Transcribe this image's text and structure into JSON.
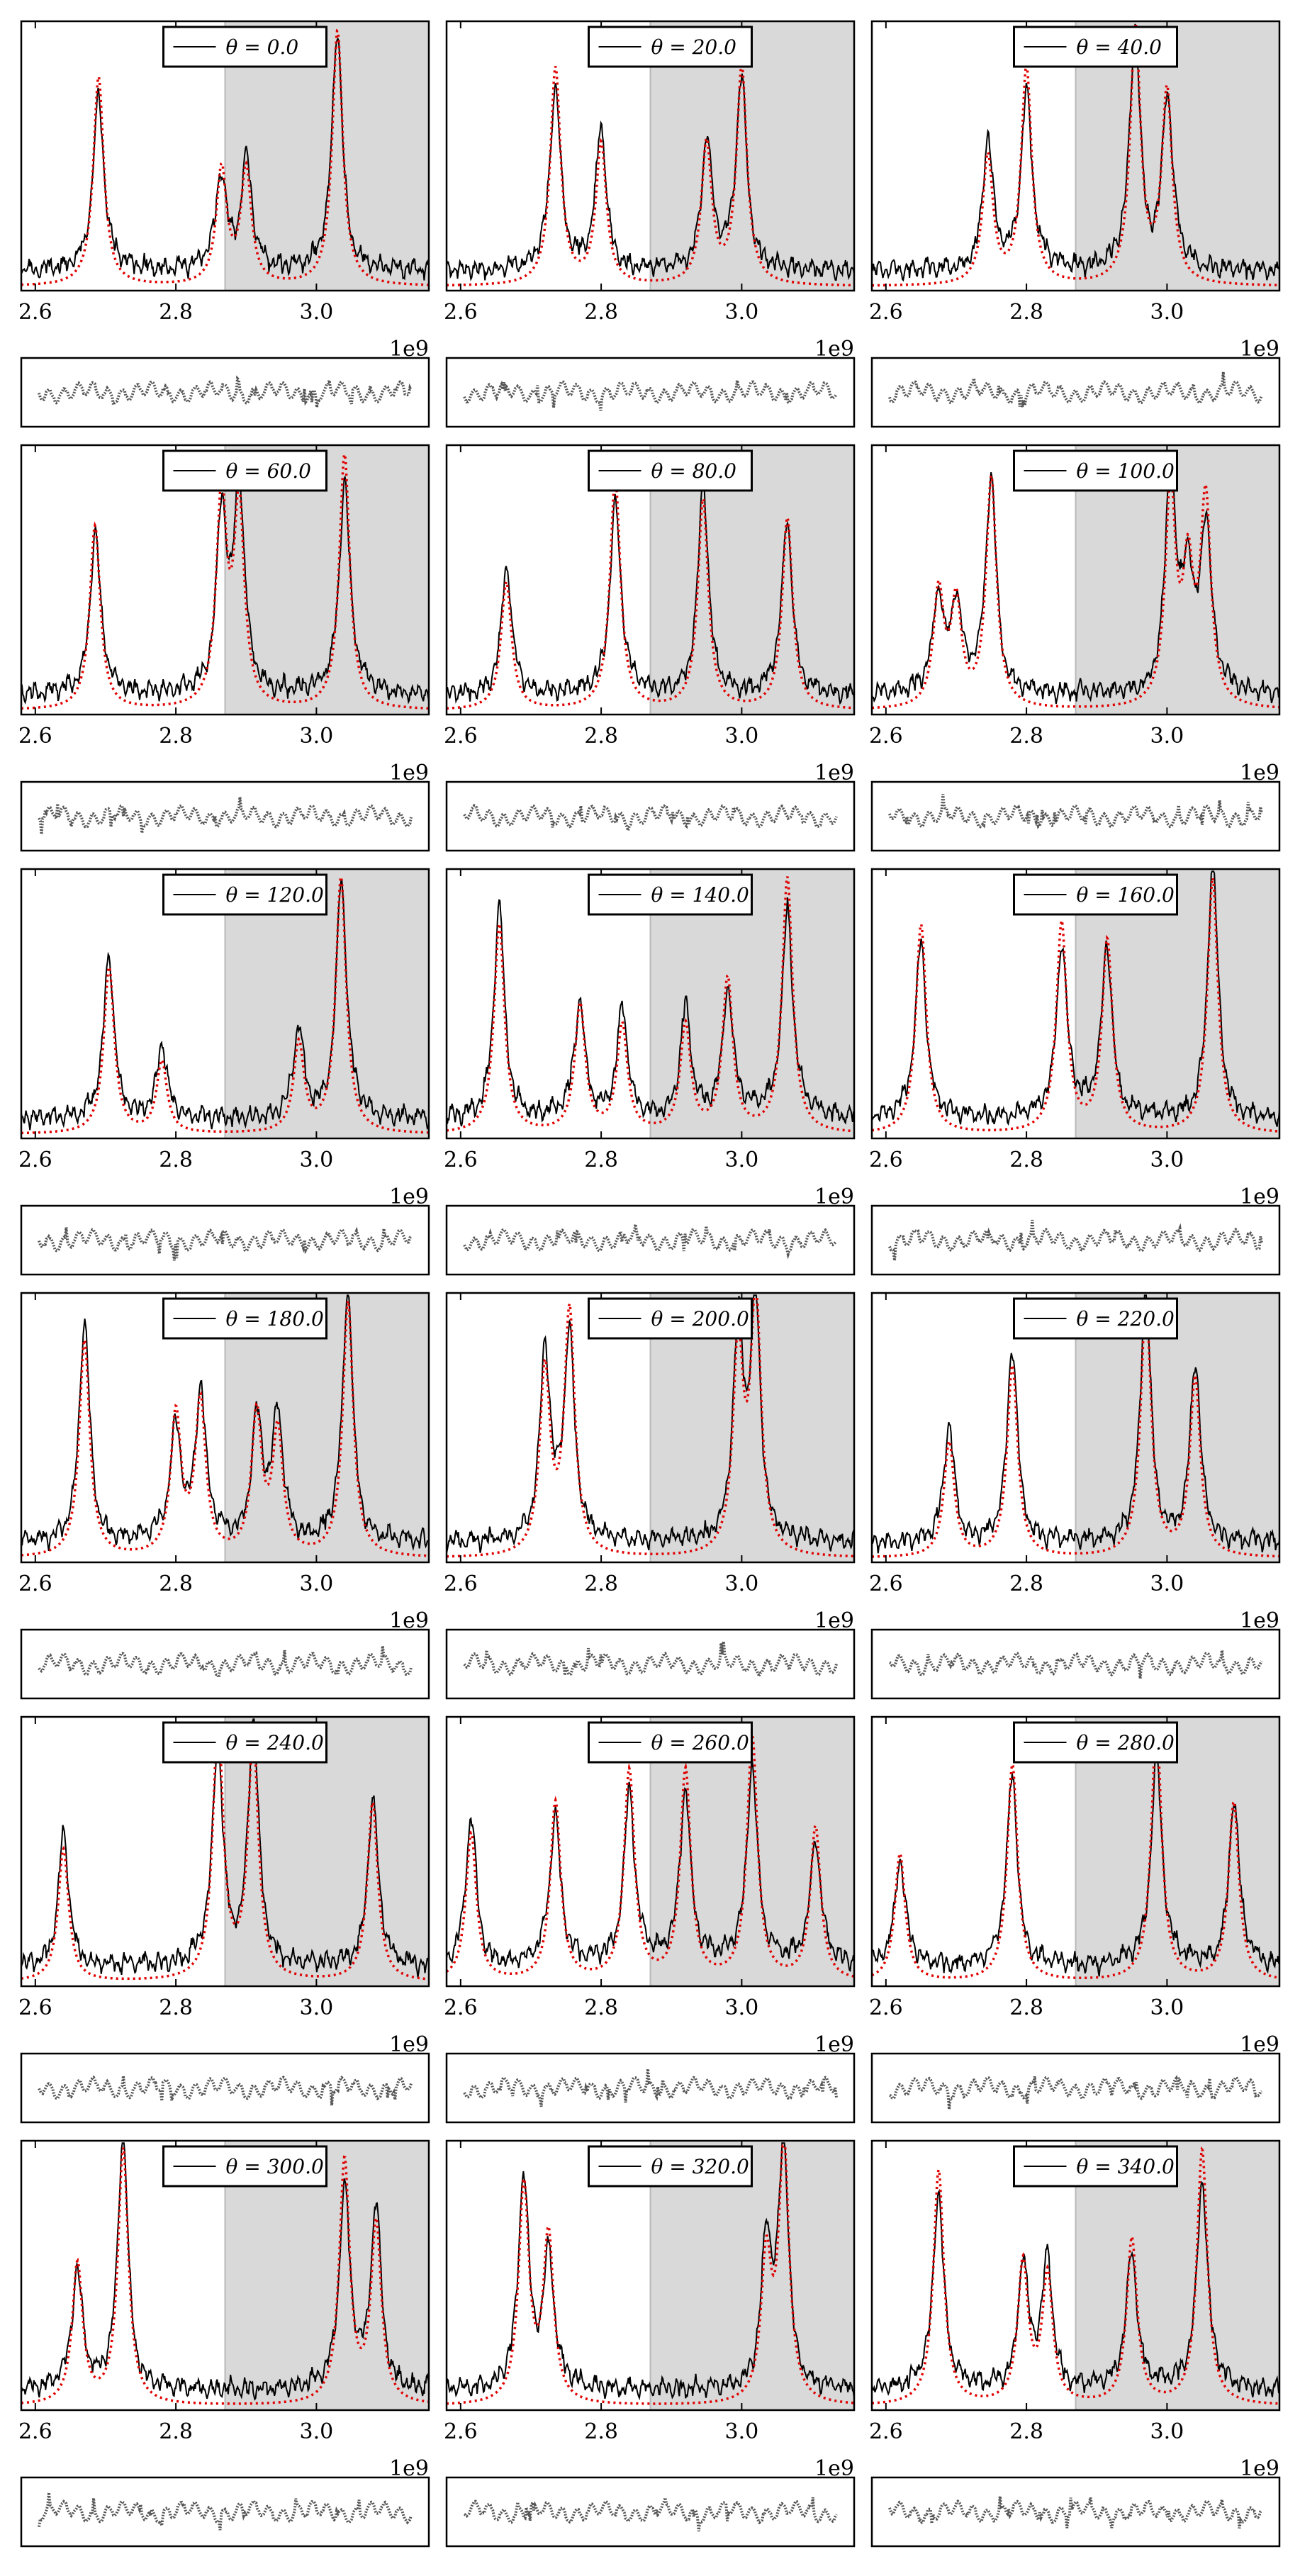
{
  "figure": {
    "grid": {
      "rows": 6,
      "cols": 3
    },
    "x_offset_label": "1e9",
    "shaded_region_start": 2870000000,
    "colors": {
      "data_line": "#000000",
      "fit_line": "#e00000",
      "shade": "#d9d9d9",
      "residual": "#555555"
    }
  },
  "chart_data": [
    {
      "type": "line",
      "legend": "θ = 0.0",
      "xlim": [
        2580000000,
        3160000000
      ],
      "xticks": [
        "2.6",
        "2.8",
        "3.0"
      ],
      "xtick_values": [
        2600000000,
        2800000000,
        3000000000
      ],
      "peaks": [
        [
          2690000000,
          0.82
        ],
        [
          2865000000,
          0.45
        ],
        [
          2900000000,
          0.45
        ],
        [
          3030000000,
          1.0
        ]
      ]
    },
    {
      "type": "line",
      "legend": "θ = 20.0",
      "xlim": [
        2580000000,
        3160000000
      ],
      "xticks": [
        "2.6",
        "2.8",
        "3.0"
      ],
      "xtick_values": [
        2600000000,
        2800000000,
        3000000000
      ],
      "peaks": [
        [
          2735000000,
          0.85
        ],
        [
          2800000000,
          0.55
        ],
        [
          2950000000,
          0.55
        ],
        [
          3000000000,
          0.85
        ]
      ]
    },
    {
      "type": "line",
      "legend": "θ = 40.0",
      "xlim": [
        2580000000,
        3160000000
      ],
      "xticks": [
        "2.6",
        "2.8",
        "3.0"
      ],
      "xtick_values": [
        2600000000,
        2800000000,
        3000000000
      ],
      "peaks": [
        [
          2745000000,
          0.5
        ],
        [
          2800000000,
          0.85
        ],
        [
          2955000000,
          1.0
        ],
        [
          3000000000,
          0.75
        ]
      ]
    },
    {
      "type": "line",
      "legend": "θ = 60.0",
      "xlim": [
        2580000000,
        3160000000
      ],
      "xticks": [
        "2.6",
        "2.8",
        "3.0"
      ],
      "xtick_values": [
        2600000000,
        2800000000,
        3000000000
      ],
      "peaks": [
        [
          2685000000,
          0.72
        ],
        [
          2865000000,
          0.82
        ],
        [
          2890000000,
          0.78
        ],
        [
          3040000000,
          1.0
        ]
      ]
    },
    {
      "type": "line",
      "legend": "θ = 80.0",
      "xlim": [
        2580000000,
        3160000000
      ],
      "xticks": [
        "2.6",
        "2.8",
        "3.0"
      ],
      "xtick_values": [
        2600000000,
        2800000000,
        3000000000
      ],
      "peaks": [
        [
          2665000000,
          0.5
        ],
        [
          2820000000,
          0.9
        ],
        [
          2945000000,
          0.82
        ],
        [
          3065000000,
          0.75
        ]
      ]
    },
    {
      "type": "line",
      "legend": "θ = 100.0",
      "xlim": [
        2580000000,
        3160000000
      ],
      "xticks": [
        "2.6",
        "2.8",
        "3.0"
      ],
      "xtick_values": [
        2600000000,
        2800000000,
        3000000000
      ],
      "peaks": [
        [
          2675000000,
          0.45
        ],
        [
          2700000000,
          0.4
        ],
        [
          2750000000,
          0.9
        ],
        [
          3005000000,
          0.85
        ],
        [
          3030000000,
          0.5
        ],
        [
          3055000000,
          0.8
        ]
      ]
    },
    {
      "type": "line",
      "legend": "θ = 120.0",
      "xlim": [
        2580000000,
        3160000000
      ],
      "xticks": [
        "2.6",
        "2.8",
        "3.0"
      ],
      "xtick_values": [
        2600000000,
        2800000000,
        3000000000
      ],
      "peaks": [
        [
          2705000000,
          0.65
        ],
        [
          2780000000,
          0.28
        ],
        [
          2975000000,
          0.35
        ],
        [
          3035000000,
          1.0
        ]
      ]
    },
    {
      "type": "line",
      "legend": "θ = 140.0",
      "xlim": [
        2580000000,
        3160000000
      ],
      "xticks": [
        "2.6",
        "2.8",
        "3.0"
      ],
      "xtick_values": [
        2600000000,
        2800000000,
        3000000000
      ],
      "peaks": [
        [
          2655000000,
          0.82
        ],
        [
          2770000000,
          0.5
        ],
        [
          2830000000,
          0.42
        ],
        [
          2920000000,
          0.42
        ],
        [
          2980000000,
          0.6
        ],
        [
          3065000000,
          1.0
        ]
      ]
    },
    {
      "type": "line",
      "legend": "θ = 160.0",
      "xlim": [
        2580000000,
        3160000000
      ],
      "xticks": [
        "2.6",
        "2.8",
        "3.0"
      ],
      "xtick_values": [
        2600000000,
        2800000000,
        3000000000
      ],
      "peaks": [
        [
          2650000000,
          0.82
        ],
        [
          2850000000,
          0.82
        ],
        [
          2915000000,
          0.75
        ],
        [
          3065000000,
          1.0
        ]
      ]
    },
    {
      "type": "line",
      "legend": "θ = 180.0",
      "xlim": [
        2580000000,
        3160000000
      ],
      "xticks": [
        "2.6",
        "2.8",
        "3.0"
      ],
      "xtick_values": [
        2600000000,
        2800000000,
        3000000000
      ],
      "peaks": [
        [
          2670000000,
          0.85
        ],
        [
          2800000000,
          0.55
        ],
        [
          2835000000,
          0.6
        ],
        [
          2915000000,
          0.55
        ],
        [
          2945000000,
          0.48
        ],
        [
          3045000000,
          1.0
        ]
      ]
    },
    {
      "type": "line",
      "legend": "θ = 200.0",
      "xlim": [
        2580000000,
        3160000000
      ],
      "xticks": [
        "2.6",
        "2.8",
        "3.0"
      ],
      "xtick_values": [
        2600000000,
        2800000000,
        3000000000
      ],
      "peaks": [
        [
          2720000000,
          0.72
        ],
        [
          2755000000,
          0.95
        ],
        [
          2995000000,
          0.8
        ],
        [
          3020000000,
          1.0
        ]
      ]
    },
    {
      "type": "line",
      "legend": "θ = 220.0",
      "xlim": [
        2580000000,
        3160000000
      ],
      "xticks": [
        "2.6",
        "2.8",
        "3.0"
      ],
      "xtick_values": [
        2600000000,
        2800000000,
        3000000000
      ],
      "peaks": [
        [
          2690000000,
          0.45
        ],
        [
          2780000000,
          0.75
        ],
        [
          2970000000,
          1.0
        ],
        [
          3040000000,
          0.7
        ]
      ]
    },
    {
      "type": "line",
      "legend": "θ = 240.0",
      "xlim": [
        2580000000,
        3160000000
      ],
      "xticks": [
        "2.6",
        "2.8",
        "3.0"
      ],
      "xtick_values": [
        2600000000,
        2800000000,
        3000000000
      ],
      "peaks": [
        [
          2640000000,
          0.52
        ],
        [
          2860000000,
          1.0
        ],
        [
          2910000000,
          0.95
        ],
        [
          3080000000,
          0.7
        ]
      ]
    },
    {
      "type": "line",
      "legend": "θ = 260.0",
      "xlim": [
        2580000000,
        3160000000
      ],
      "xticks": [
        "2.6",
        "2.8",
        "3.0"
      ],
      "xtick_values": [
        2600000000,
        2800000000,
        3000000000
      ],
      "peaks": [
        [
          2615000000,
          0.58
        ],
        [
          2735000000,
          0.7
        ],
        [
          2840000000,
          0.82
        ],
        [
          2920000000,
          0.82
        ],
        [
          3015000000,
          0.95
        ],
        [
          3105000000,
          0.6
        ]
      ]
    },
    {
      "type": "line",
      "legend": "θ = 280.0",
      "xlim": [
        2580000000,
        3160000000
      ],
      "xticks": [
        "2.6",
        "2.8",
        "3.0"
      ],
      "xtick_values": [
        2600000000,
        2800000000,
        3000000000
      ],
      "peaks": [
        [
          2620000000,
          0.5
        ],
        [
          2780000000,
          0.85
        ],
        [
          2985000000,
          1.0
        ],
        [
          3095000000,
          0.7
        ]
      ]
    },
    {
      "type": "line",
      "legend": "θ = 300.0",
      "xlim": [
        2580000000,
        3160000000
      ],
      "xticks": [
        "2.6",
        "2.8",
        "3.0"
      ],
      "xtick_values": [
        2600000000,
        2800000000,
        3000000000
      ],
      "peaks": [
        [
          2660000000,
          0.55
        ],
        [
          2725000000,
          1.0
        ],
        [
          3040000000,
          0.95
        ],
        [
          3085000000,
          0.7
        ]
      ]
    },
    {
      "type": "line",
      "legend": "θ = 320.0",
      "xlim": [
        2580000000,
        3160000000
      ],
      "xticks": [
        "2.6",
        "2.8",
        "3.0"
      ],
      "xtick_values": [
        2600000000,
        2800000000,
        3000000000
      ],
      "peaks": [
        [
          2690000000,
          0.85
        ],
        [
          2725000000,
          0.65
        ],
        [
          3035000000,
          0.55
        ],
        [
          3060000000,
          1.0
        ]
      ]
    },
    {
      "type": "line",
      "legend": "θ = 340.0",
      "xlim": [
        2580000000,
        3160000000
      ],
      "xticks": [
        "2.6",
        "2.8",
        "3.0"
      ],
      "xtick_values": [
        2600000000,
        2800000000,
        3000000000
      ],
      "peaks": [
        [
          2675000000,
          0.92
        ],
        [
          2795000000,
          0.55
        ],
        [
          2830000000,
          0.5
        ],
        [
          2950000000,
          0.65
        ],
        [
          3050000000,
          1.0
        ]
      ]
    }
  ]
}
